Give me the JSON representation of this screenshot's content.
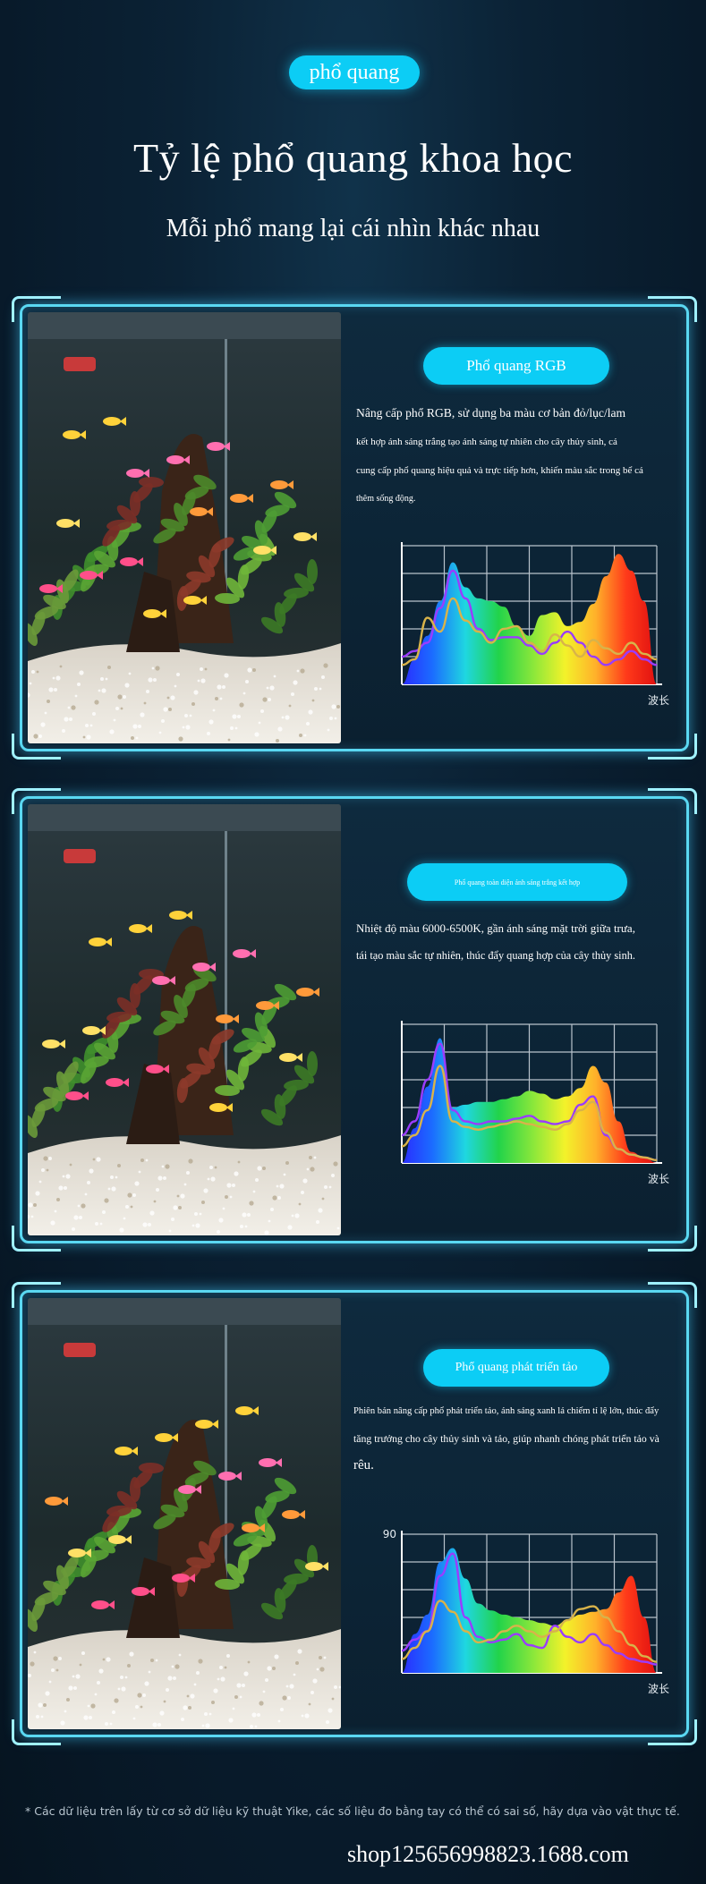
{
  "header": {
    "tag": "phổ quang",
    "title": "Tỷ lệ phổ quang khoa học",
    "subtitle": "Mỗi phổ mang lại cái nhìn khác nhau"
  },
  "sections": [
    {
      "label": "Phổ quang RGB",
      "lines": [
        "Nâng cấp phổ RGB, sử dụng ba màu cơ bản đỏ/lục/lam",
        "kết hợp ánh sáng trắng tạo ánh sáng tự nhiên cho cây thủy sinh, cá",
        "cung cấp phổ quang hiệu quả và trực tiếp hơn, khiến màu sắc trong bể cá",
        "thêm sống động."
      ],
      "chart_data": {
        "type": "area",
        "title": "",
        "xlabel": "波长",
        "ylabel": "",
        "y_tick_label": "",
        "grid": true,
        "legend": "none",
        "x": [
          0,
          5,
          10,
          15,
          20,
          25,
          30,
          35,
          40,
          45,
          50,
          55,
          60,
          65,
          70,
          75,
          80,
          85,
          90,
          95,
          100
        ],
        "series": [
          {
            "color": "#spectrum",
            "values": [
              0,
              18,
              35,
              60,
              88,
              70,
              62,
              60,
              56,
              42,
              35,
              50,
              52,
              42,
              45,
              58,
              78,
              94,
              82,
              60,
              0
            ]
          },
          {
            "color": "#9a3cff",
            "values": [
              20,
              24,
              30,
              55,
              82,
              62,
              40,
              32,
              34,
              34,
              28,
              22,
              30,
              38,
              30,
              20,
              14,
              18,
              24,
              18,
              14
            ]
          },
          {
            "color": "#d8b34a",
            "values": [
              14,
              18,
              48,
              38,
              62,
              46,
              38,
              30,
              40,
              42,
              30,
              24,
              36,
              28,
              20,
              32,
              26,
              22,
              30,
              22,
              18
            ]
          }
        ]
      }
    },
    {
      "label": "Phổ quang toàn diện ánh sáng trắng kết hợp",
      "lines": [
        "Nhiệt độ màu 6000-6500K, gần ánh sáng mặt trời giữa trưa,",
        "tái tạo màu sắc tự nhiên, thúc đẩy quang hợp của cây thủy sinh."
      ],
      "chart_data": {
        "type": "area",
        "title": "",
        "xlabel": "波长",
        "ylabel": "",
        "y_tick_label": "",
        "grid": true,
        "legend": "none",
        "x": [
          0,
          5,
          10,
          15,
          20,
          25,
          30,
          35,
          40,
          45,
          50,
          55,
          60,
          65,
          70,
          75,
          80,
          85,
          90,
          95,
          100
        ],
        "series": [
          {
            "color": "#spectrum",
            "values": [
              0,
              25,
              55,
              90,
              40,
              42,
              44,
              44,
              46,
              48,
              52,
              50,
              46,
              48,
              54,
              70,
              58,
              30,
              8,
              4,
              0
            ]
          },
          {
            "color": "#9a3cff",
            "values": [
              20,
              30,
              60,
              86,
              38,
              30,
              28,
              30,
              30,
              32,
              34,
              30,
              28,
              30,
              42,
              48,
              20,
              10,
              6,
              4,
              2
            ]
          },
          {
            "color": "#d8b34a",
            "values": [
              12,
              20,
              38,
              70,
              30,
              26,
              24,
              26,
              28,
              30,
              28,
              26,
              24,
              28,
              38,
              44,
              22,
              10,
              6,
              4,
              2
            ]
          }
        ]
      }
    },
    {
      "label": "Phổ quang phát triển tảo",
      "lines": [
        "Phiên bản nâng cấp phổ phát triển tảo, ánh sáng xanh lá chiếm tỉ lệ lớn, thúc đẩy",
        "tăng trưởng cho cây thủy sinh và tảo, giúp nhanh chóng phát triển tảo và",
        "rêu."
      ],
      "chart_data": {
        "type": "area",
        "title": "",
        "xlabel": "波长",
        "ylabel": "",
        "y_tick_label": "90",
        "grid": true,
        "legend": "none",
        "x": [
          0,
          5,
          10,
          15,
          20,
          25,
          30,
          35,
          40,
          45,
          50,
          55,
          60,
          65,
          70,
          75,
          80,
          85,
          90,
          95,
          100
        ],
        "series": [
          {
            "color": "#spectrum",
            "values": [
              0,
              28,
              42,
              80,
              90,
              68,
              50,
              45,
              42,
              40,
              38,
              36,
              34,
              38,
              42,
              44,
              46,
              58,
              70,
              40,
              0
            ]
          },
          {
            "color": "#9a3cff",
            "values": [
              16,
              24,
              30,
              70,
              86,
              40,
              26,
              22,
              24,
              28,
              20,
              18,
              34,
              26,
              22,
              28,
              20,
              14,
              10,
              8,
              6
            ]
          },
          {
            "color": "#d8b34a",
            "values": [
              10,
              18,
              30,
              52,
              44,
              30,
              22,
              24,
              30,
              34,
              30,
              26,
              30,
              38,
              46,
              48,
              40,
              30,
              20,
              12,
              8
            ]
          }
        ]
      }
    }
  ],
  "footnote": "* Các dữ liệu trên lấy từ cơ sở dữ liệu kỹ thuật Yike, các số liệu đo bằng tay có thể có sai số, hãy dựa vào vật thực tế.",
  "watermark": "shop125656998823.1688.com",
  "colors": {
    "accent": "#0ccdf5",
    "frame": "#5ad8f2",
    "background": "#0b2235"
  }
}
